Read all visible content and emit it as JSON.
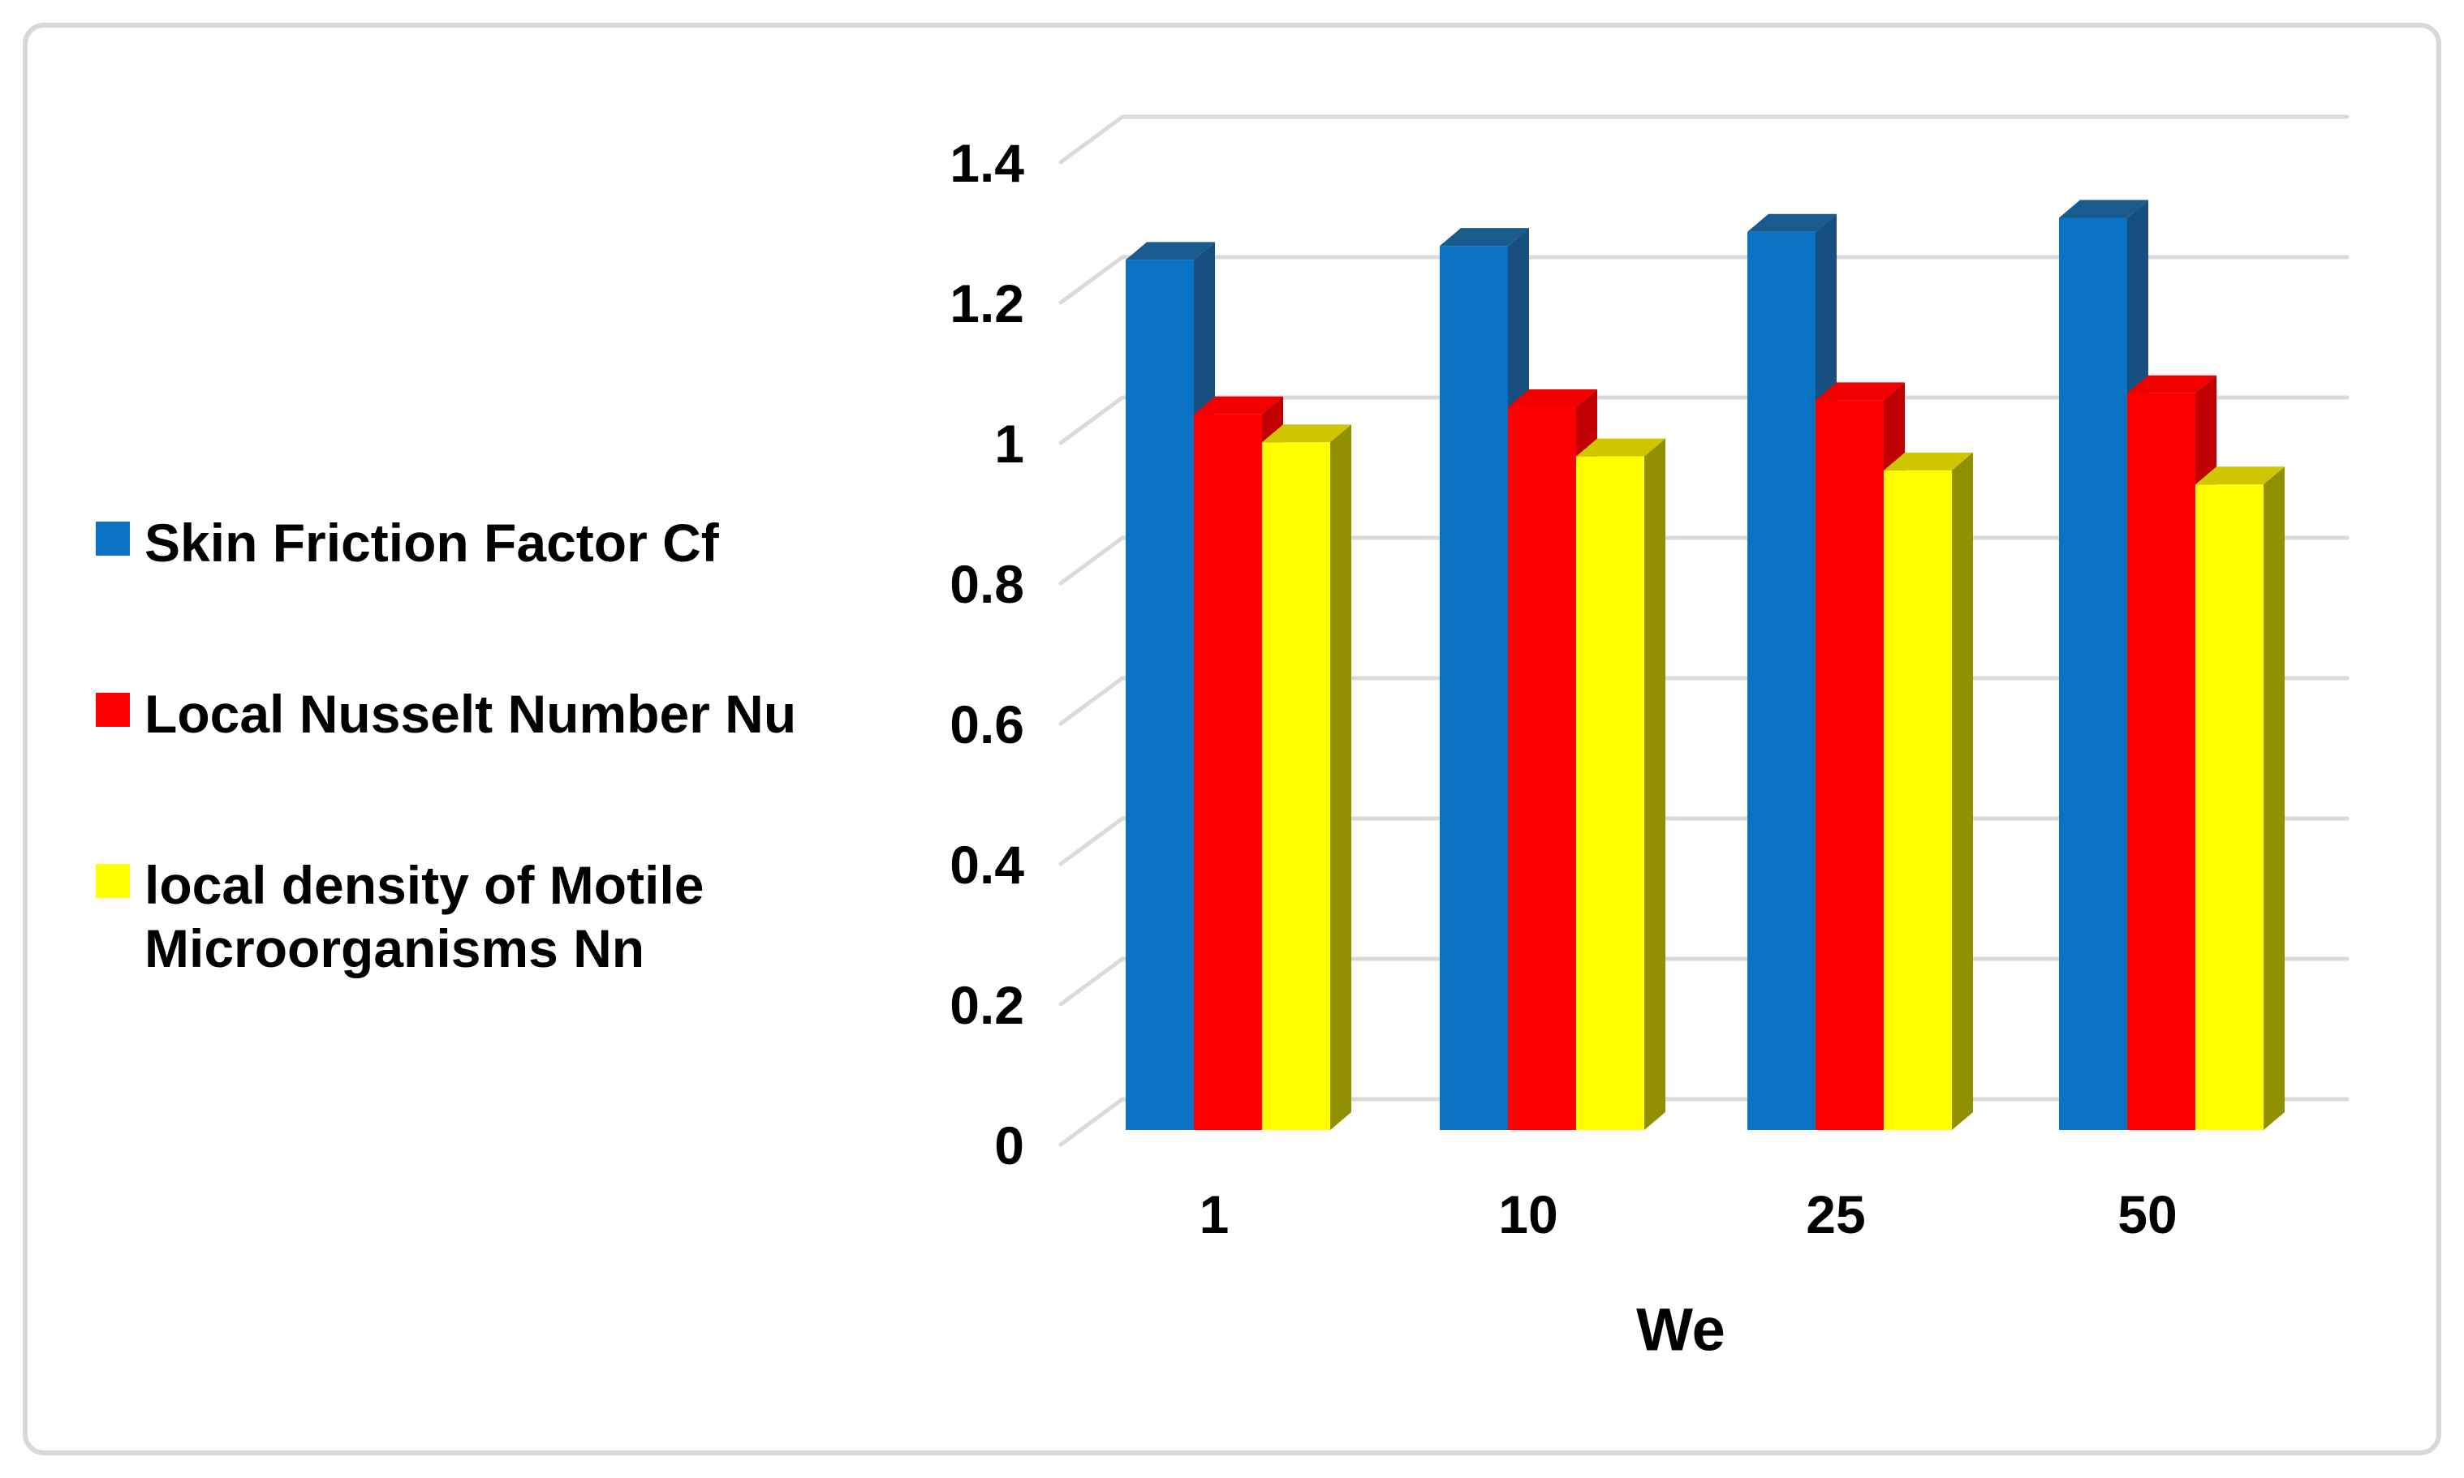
{
  "figure": {
    "background": "#ffffff",
    "border_color": "#d8d8d8"
  },
  "legend": {
    "position": "left",
    "marker_colors": [
      "#0a72c4",
      "#fe0000",
      "#ffff00"
    ]
  },
  "chart_data": {
    "type": "bar",
    "projection": "3d-column",
    "title": "",
    "xlabel": "We",
    "ylabel": "",
    "categories": [
      "1",
      "10",
      "25",
      "50"
    ],
    "series": [
      {
        "name": "Skin Friction Factor Cf",
        "color": "#0a72c4",
        "color_top": "#1a5b8e",
        "color_side": "#17507f",
        "values": [
          1.24,
          1.26,
          1.28,
          1.3
        ]
      },
      {
        "name": "Local Nusselt Number Nu",
        "color": "#fe0000",
        "color_top": "#f20000",
        "color_side": "#c00000",
        "values": [
          1.02,
          1.03,
          1.04,
          1.05
        ]
      },
      {
        "name": "local density of Motile Microorganisms Nn",
        "color": "#ffff00",
        "color_top": "#cfc500",
        "color_side": "#909000",
        "values": [
          0.98,
          0.96,
          0.94,
          0.92
        ]
      }
    ],
    "ylim": [
      0,
      1.4
    ],
    "ytick_step": 0.2,
    "yticks": [
      "0",
      "0.2",
      "0.4",
      "0.6",
      "0.8",
      "1",
      "1.2",
      "1.4"
    ],
    "grid": true,
    "gridline_color": "#dadada",
    "legend_position": "left"
  }
}
